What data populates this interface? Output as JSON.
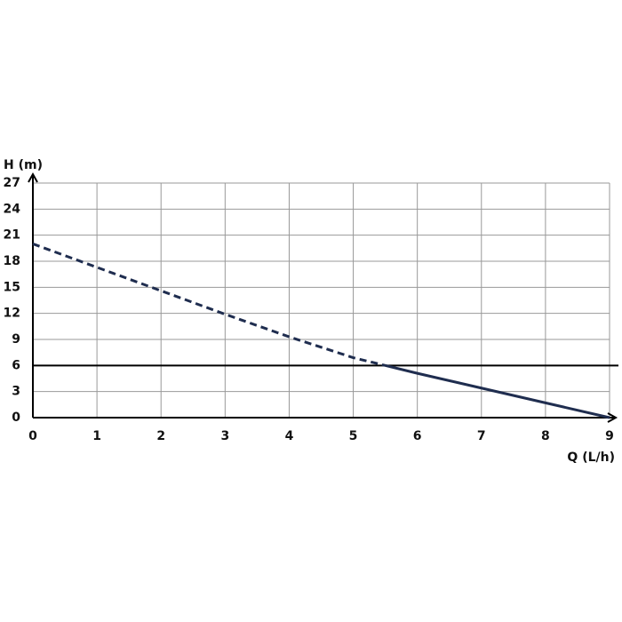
{
  "chart_data": {
    "type": "line",
    "x_label": "Q (L/h)",
    "y_label": "H (m)",
    "x": [
      0,
      1,
      2,
      3,
      4,
      5,
      5.5,
      6,
      7,
      8,
      9
    ],
    "series": [
      {
        "color": "#1f2d4f",
        "dashed": true,
        "values": [
          20,
          17.3,
          14.6,
          11.9,
          9.3,
          6.9,
          6,
          null,
          null,
          null,
          null
        ]
      },
      {
        "color": "#1f2d4f",
        "dashed": false,
        "values": [
          null,
          null,
          null,
          null,
          null,
          null,
          6,
          5.1,
          3.4,
          1.7,
          0
        ]
      }
    ],
    "hlines": [
      {
        "value": 6,
        "color": "#000000"
      }
    ],
    "xlim": [
      0,
      9
    ],
    "xticks": [
      0,
      1,
      2,
      3,
      4,
      5,
      6,
      7,
      8,
      9
    ],
    "ylim": [
      0,
      27
    ],
    "yticks": [
      0,
      3,
      6,
      9,
      12,
      15,
      18,
      21,
      24,
      27
    ],
    "grid": true
  }
}
